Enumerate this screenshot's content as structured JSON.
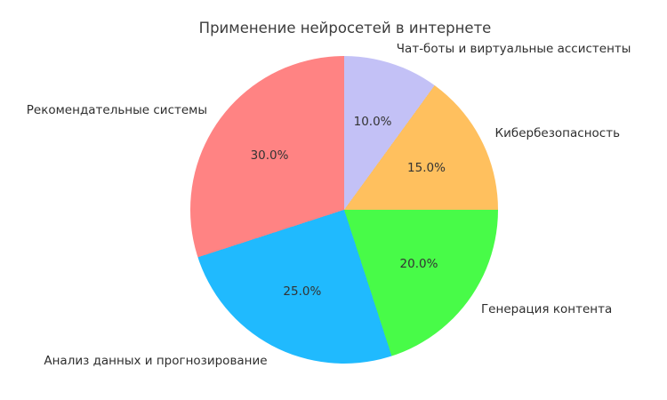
{
  "title": "Применение нейросетей в интернете",
  "chart_data": {
    "type": "pie",
    "title": "Применение нейросетей в интернете",
    "start_angle_deg": 90,
    "direction": "clockwise",
    "autopct_format": "%1.1f%%",
    "legend": false,
    "background_color": "#ffffff",
    "label_distance": 1.1,
    "pct_distance": 0.6,
    "slices": [
      {
        "label": "Чат-боты и виртуальные ассистенты",
        "value": 10.0,
        "pct_label": "10.0%",
        "color": "#c3c1f6"
      },
      {
        "label": "Кибербезопасность",
        "value": 15.0,
        "pct_label": "15.0%",
        "color": "#ffc05e"
      },
      {
        "label": "Генерация контента",
        "value": 20.0,
        "pct_label": "20.0%",
        "color": "#48fb48"
      },
      {
        "label": "Анализ данных и прогнозирование",
        "value": 25.0,
        "pct_label": "25.0%",
        "color": "#20bafe"
      },
      {
        "label": "Рекомендательные системы",
        "value": 30.0,
        "pct_label": "30.0%",
        "color": "#ff8383"
      }
    ]
  }
}
